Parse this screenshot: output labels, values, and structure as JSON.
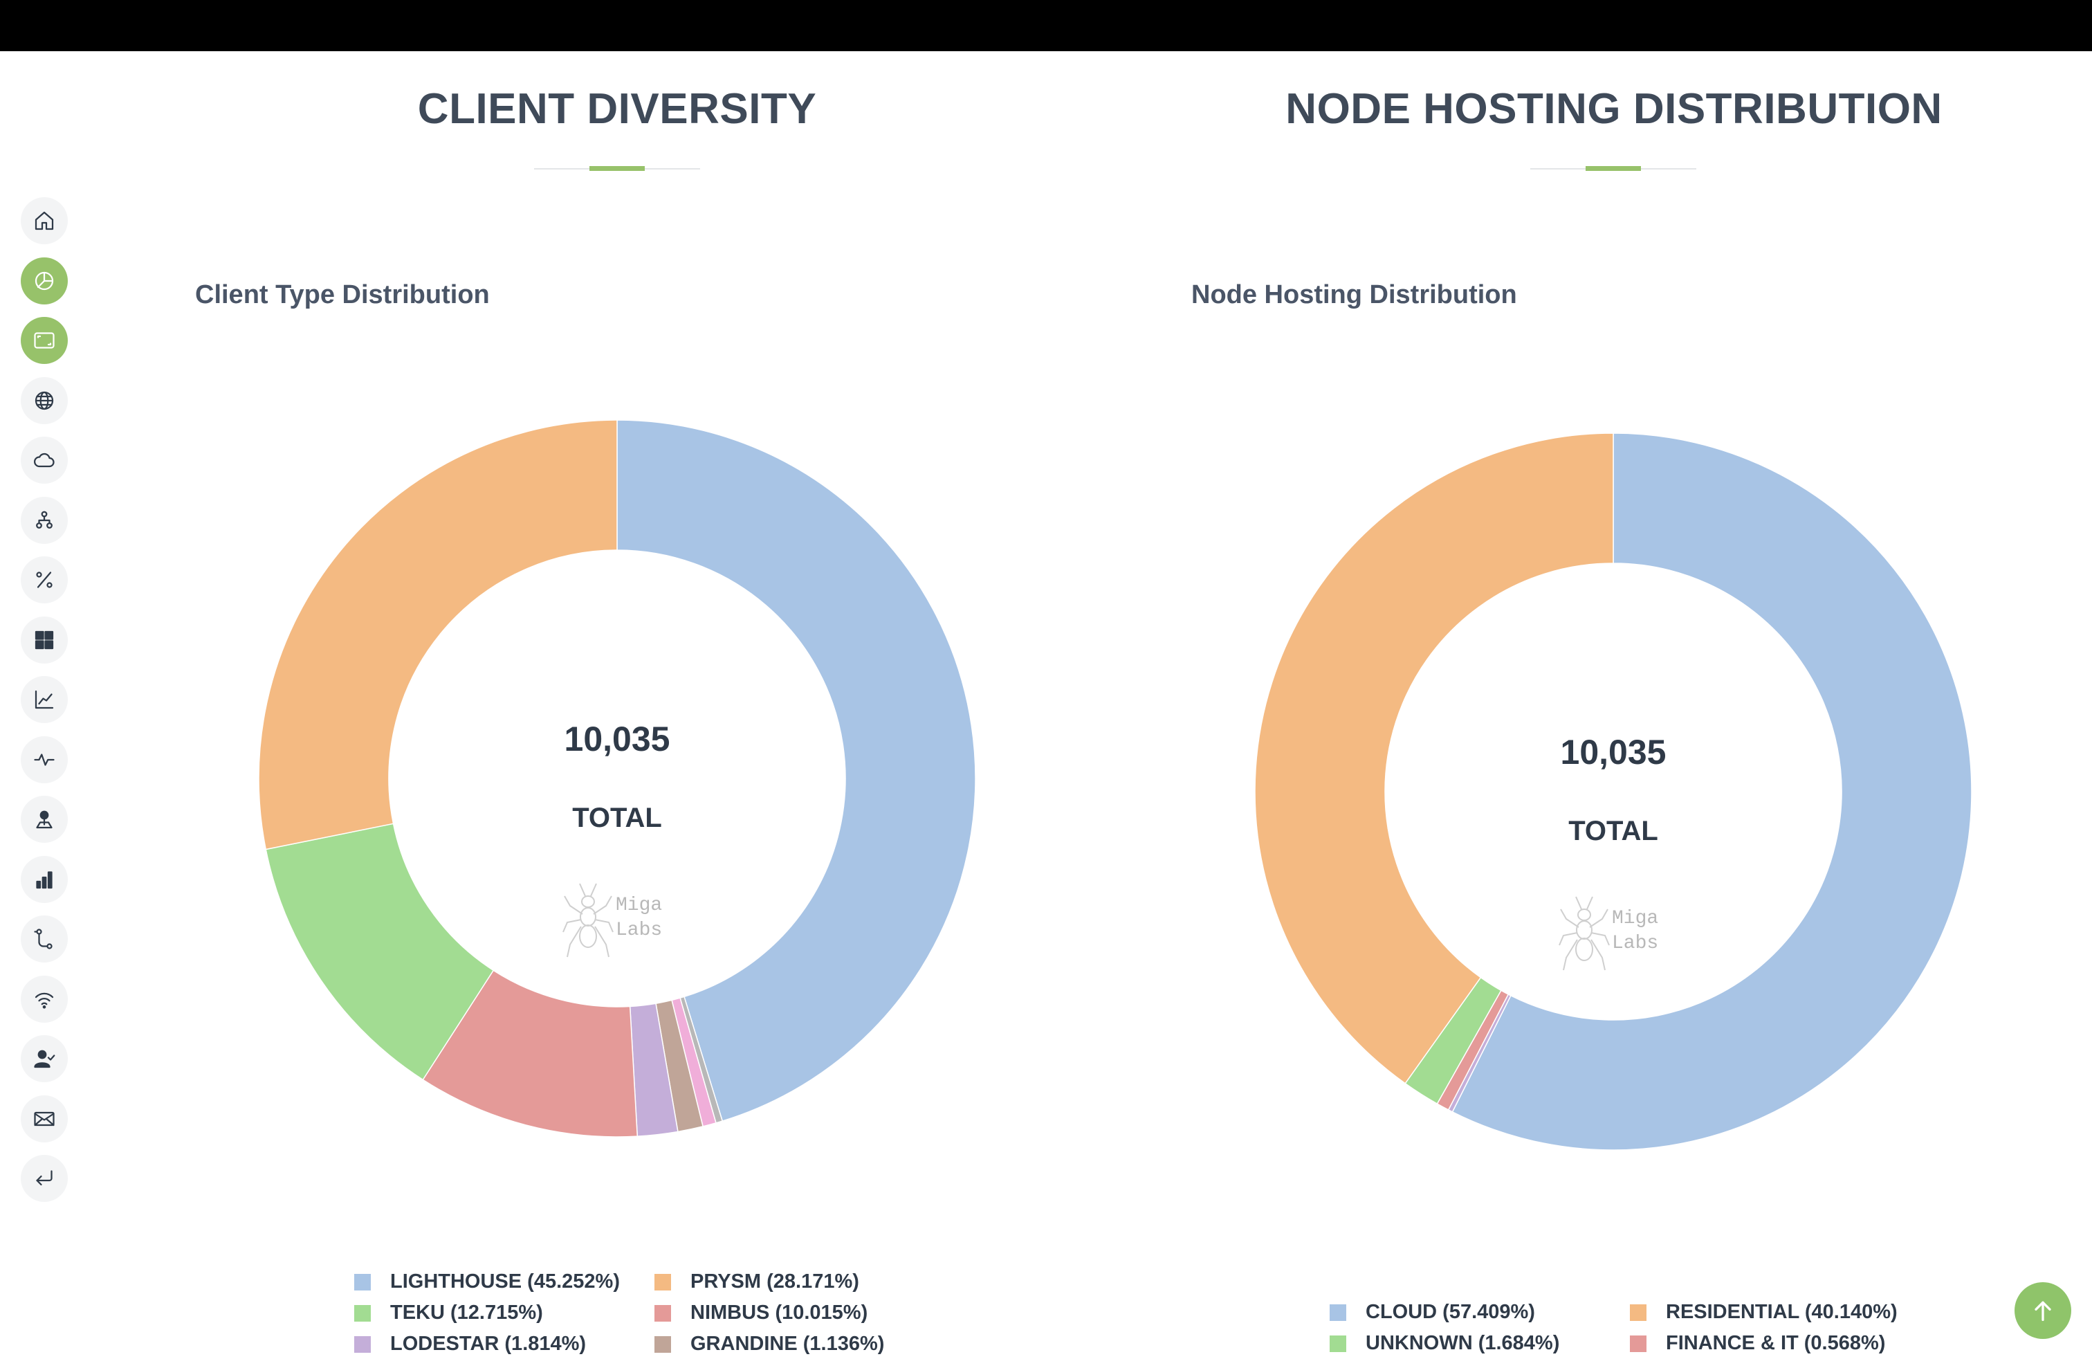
{
  "sidebar": {
    "items": [
      {
        "name": "home-icon",
        "glyph": "home"
      },
      {
        "name": "pie-chart-icon",
        "glyph": "pie",
        "active": true
      },
      {
        "name": "screen-icon",
        "glyph": "screen",
        "active": true
      },
      {
        "name": "globe-icon",
        "glyph": "globe"
      },
      {
        "name": "cloud-icon",
        "glyph": "cloud"
      },
      {
        "name": "network-icon",
        "glyph": "network"
      },
      {
        "name": "percent-icon",
        "glyph": "percent"
      },
      {
        "name": "grid-icon",
        "glyph": "grid"
      },
      {
        "name": "line-chart-icon",
        "glyph": "line"
      },
      {
        "name": "pulse-icon",
        "glyph": "pulse"
      },
      {
        "name": "map-pin-icon",
        "glyph": "pin"
      },
      {
        "name": "bar-chart-icon",
        "glyph": "bars"
      },
      {
        "name": "route-icon",
        "glyph": "route"
      },
      {
        "name": "wifi-icon",
        "glyph": "wifi"
      },
      {
        "name": "user-check-icon",
        "glyph": "user"
      },
      {
        "name": "mail-icon",
        "glyph": "mail"
      },
      {
        "name": "enter-icon",
        "glyph": "enter"
      }
    ]
  },
  "sections": {
    "client": {
      "title": "CLIENT DIVERSITY",
      "chart_title": "Client Type Distribution"
    },
    "hosting": {
      "title": "NODE HOSTING DISTRIBUTION",
      "chart_title": "Node Hosting Distribution"
    }
  },
  "watermark": {
    "line1": "Miga",
    "line2": "Labs"
  },
  "colors": {
    "accent": "#97c26a",
    "heading": "#3f4a59"
  },
  "chart_data": [
    {
      "type": "pie",
      "donut": true,
      "title": "Client Type Distribution",
      "center_value": "10,035",
      "center_label": "TOTAL",
      "slices": [
        {
          "label": "LIGHTHOUSE (45.252%)",
          "value": 45.252,
          "color": "#a8c4e5"
        },
        {
          "label": "PRYSM (28.171%)",
          "value": 28.171,
          "color": "#f4ba82"
        },
        {
          "label": "TEKU (12.715%)",
          "value": 12.715,
          "color": "#a2dc92"
        },
        {
          "label": "NIMBUS (10.015%)",
          "value": 10.015,
          "color": "#e49a98"
        },
        {
          "label": "LODESTAR (1.814%)",
          "value": 1.814,
          "color": "#c4aed9"
        },
        {
          "label": "GRANDINE (1.136%)",
          "value": 1.136,
          "color": "#c0a598"
        },
        {
          "label": "",
          "value": 0.6,
          "color": "#f0aed9"
        },
        {
          "label": "",
          "value": 0.297,
          "color": "#b8b8b8"
        }
      ],
      "draw_order": [
        0,
        7,
        6,
        5,
        4,
        3,
        2,
        1
      ],
      "legend": [
        0,
        1,
        2,
        3,
        4,
        5
      ]
    },
    {
      "type": "pie",
      "donut": true,
      "title": "Node Hosting Distribution",
      "center_value": "10,035",
      "center_label": "TOTAL",
      "slices": [
        {
          "label": "CLOUD (57.409%)",
          "value": 57.409,
          "color": "#a8c4e5"
        },
        {
          "label": "RESIDENTIAL (40.140%)",
          "value": 40.14,
          "color": "#f4ba82"
        },
        {
          "label": "UNKNOWN (1.684%)",
          "value": 1.684,
          "color": "#a2dc92"
        },
        {
          "label": "FINANCE & IT (0.568%)",
          "value": 0.568,
          "color": "#e49a98"
        },
        {
          "label": "",
          "value": 0.199,
          "color": "#c4aed9"
        }
      ],
      "draw_order": [
        0,
        4,
        3,
        2,
        1
      ],
      "legend": [
        0,
        1,
        2,
        3
      ]
    }
  ]
}
